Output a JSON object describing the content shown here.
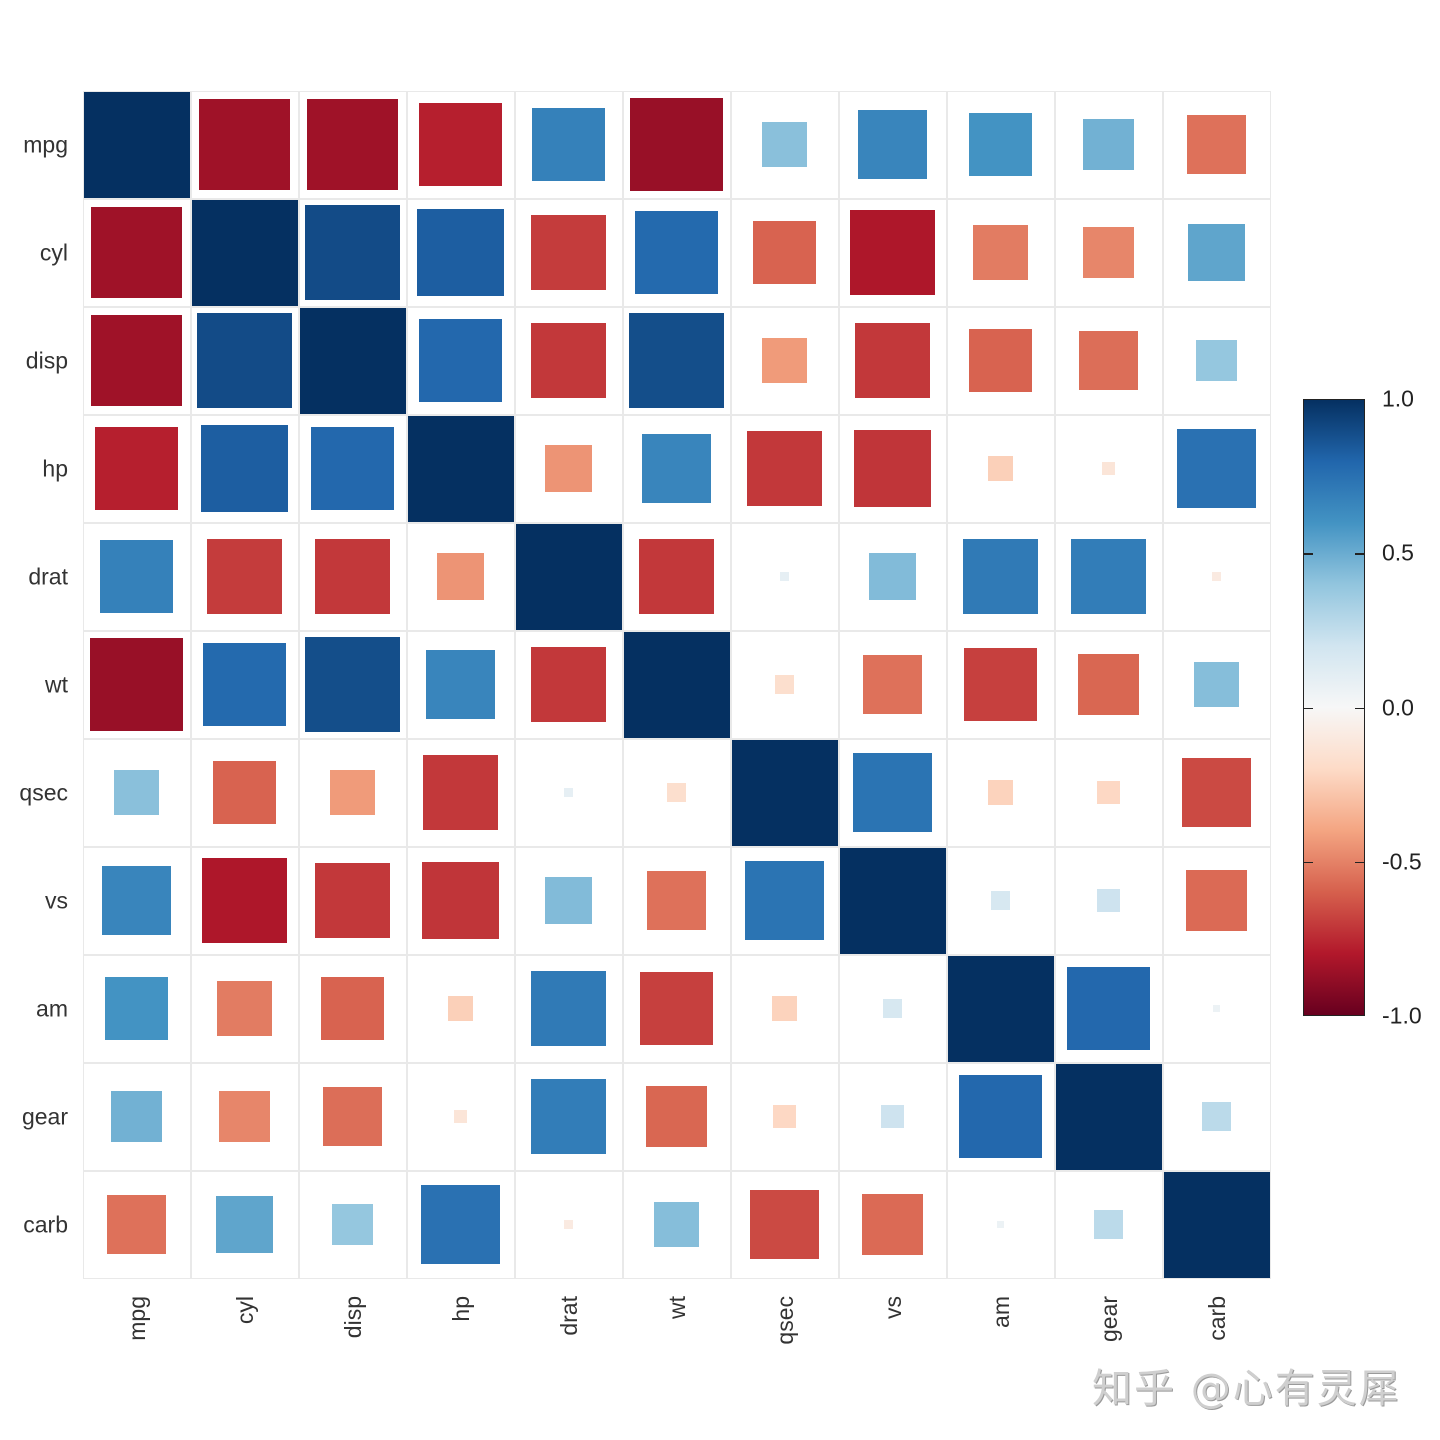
{
  "chart_data": {
    "type": "heatmap",
    "subtype": "correlation-matrix-square-glyphs",
    "title": "",
    "variables": [
      "mpg",
      "cyl",
      "disp",
      "hp",
      "drat",
      "wt",
      "qsec",
      "vs",
      "am",
      "gear",
      "carb"
    ],
    "row_labels": [
      "mpg",
      "cyl",
      "disp",
      "hp",
      "drat",
      "wt",
      "qsec",
      "vs",
      "am",
      "gear",
      "carb"
    ],
    "col_labels": [
      "mpg",
      "cyl",
      "disp",
      "hp",
      "drat",
      "wt",
      "qsec",
      "vs",
      "am",
      "gear",
      "carb"
    ],
    "matrix": [
      [
        1.0,
        -0.85,
        -0.85,
        -0.78,
        0.68,
        -0.87,
        0.42,
        0.66,
        0.6,
        0.48,
        -0.55
      ],
      [
        -0.85,
        1.0,
        0.9,
        0.83,
        -0.7,
        0.78,
        -0.59,
        -0.81,
        -0.52,
        -0.49,
        0.53
      ],
      [
        -0.85,
        0.9,
        1.0,
        0.79,
        -0.71,
        0.89,
        -0.43,
        -0.71,
        -0.59,
        -0.56,
        0.39
      ],
      [
        -0.78,
        0.83,
        0.79,
        1.0,
        -0.45,
        0.66,
        -0.71,
        -0.72,
        -0.24,
        -0.13,
        0.75
      ],
      [
        0.68,
        -0.7,
        -0.71,
        -0.45,
        1.0,
        -0.71,
        0.09,
        0.44,
        0.71,
        0.7,
        -0.09
      ],
      [
        -0.87,
        0.78,
        0.89,
        0.66,
        -0.71,
        1.0,
        -0.17,
        -0.55,
        -0.69,
        -0.58,
        0.43
      ],
      [
        0.42,
        -0.59,
        -0.43,
        -0.71,
        0.09,
        -0.17,
        1.0,
        0.74,
        -0.23,
        -0.21,
        -0.66
      ],
      [
        0.66,
        -0.81,
        -0.71,
        -0.72,
        0.44,
        -0.55,
        0.74,
        1.0,
        0.17,
        0.21,
        -0.57
      ],
      [
        0.6,
        -0.52,
        -0.59,
        -0.24,
        0.71,
        -0.69,
        -0.23,
        0.17,
        1.0,
        0.79,
        0.06
      ],
      [
        0.48,
        -0.49,
        -0.56,
        -0.13,
        0.7,
        -0.58,
        -0.21,
        0.21,
        0.79,
        1.0,
        0.27
      ],
      [
        -0.55,
        0.53,
        0.39,
        0.75,
        -0.09,
        0.43,
        -0.66,
        -0.57,
        0.06,
        0.27,
        1.0
      ]
    ],
    "colorbar": {
      "ticks": [
        1.0,
        0.5,
        0.0,
        -0.5,
        -1.0
      ],
      "tick_labels": [
        "1.0",
        "0.5",
        "0.0",
        "-0.5",
        "-1.0"
      ],
      "range": [
        -1.0,
        1.0
      ],
      "palette": "RdBu",
      "colors": [
        "#67001f",
        "#b2182b",
        "#d6604d",
        "#f4a582",
        "#fddbc7",
        "#f7f7f7",
        "#d1e5f0",
        "#92c5de",
        "#4393c3",
        "#2166ac",
        "#053061"
      ]
    },
    "xlabel": "",
    "ylabel": "",
    "grid": true,
    "legend_position": "right"
  },
  "watermark": "知乎 @心有灵犀"
}
